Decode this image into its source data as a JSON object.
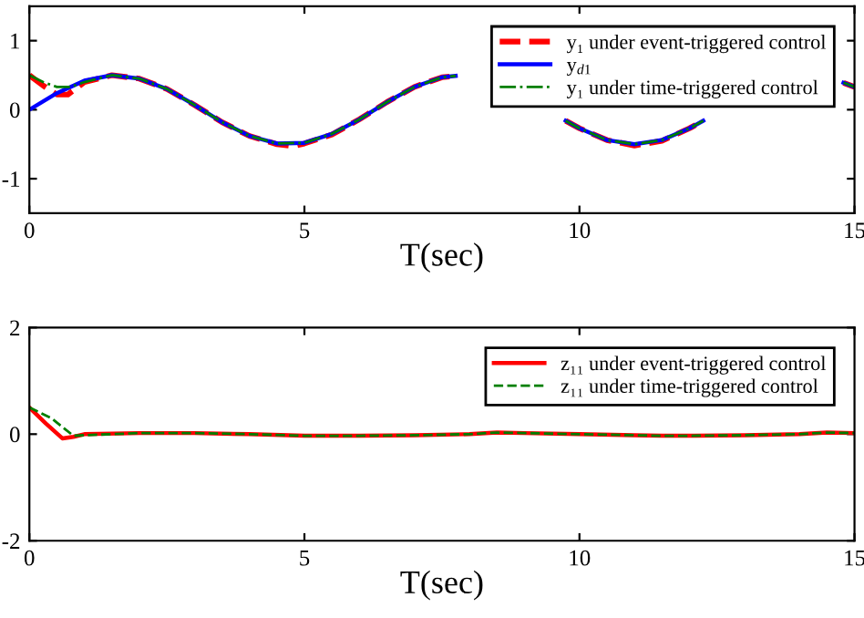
{
  "chart_data": [
    {
      "type": "line",
      "xlabel": "T(sec)",
      "xlim": [
        0,
        15
      ],
      "ylim": [
        -1.5,
        1.5
      ],
      "xticks": [
        0,
        5,
        10,
        15
      ],
      "yticks": [
        -1,
        0,
        1
      ],
      "grid": false,
      "legend": "top right",
      "series": [
        {
          "name": "y₁ under event-triggered control",
          "color": "#ff0000",
          "line_style": "dashed",
          "x": [
            0,
            0.25,
            0.5,
            0.7,
            1,
            1.5,
            2,
            2.5,
            3,
            3.5,
            4,
            4.5,
            4.8,
            5,
            5.5,
            6,
            6.5,
            7,
            7.5,
            7.75,
            8,
            8.5,
            9,
            9.5,
            9.75,
            10,
            10.5,
            11,
            11.5,
            12,
            12.25,
            12.5,
            13,
            13.5,
            14,
            14.5,
            14.8,
            15
          ],
          "values": [
            0.5,
            0.35,
            0.22,
            0.22,
            0.4,
            0.5,
            0.45,
            0.3,
            0.07,
            -0.18,
            -0.38,
            -0.5,
            -0.53,
            -0.49,
            -0.36,
            -0.14,
            0.11,
            0.33,
            0.47,
            0.49,
            null,
            null,
            null,
            null,
            -0.16,
            -0.27,
            -0.44,
            -0.52,
            -0.45,
            -0.27,
            -0.16,
            null,
            null,
            null,
            null,
            null,
            0.39,
            0.33
          ]
        },
        {
          "name": "y$_{d1}$",
          "color": "#0000ff",
          "line_style": "solid",
          "x": [
            0,
            0.5,
            1,
            1.5,
            2,
            2.5,
            3,
            3.5,
            4,
            4.5,
            5,
            5.5,
            6,
            6.5,
            7,
            7.5,
            7.75,
            8,
            8.5,
            9,
            9.5,
            9.75,
            10,
            10.5,
            11,
            11.5,
            12,
            12.25,
            12.5,
            13,
            13.5,
            14,
            14.5,
            14.8,
            15
          ],
          "values": [
            0,
            0.24,
            0.42,
            0.5,
            0.45,
            0.3,
            0.07,
            -0.18,
            -0.38,
            -0.49,
            -0.48,
            -0.35,
            -0.14,
            0.11,
            0.33,
            0.47,
            0.49,
            null,
            null,
            null,
            null,
            -0.16,
            -0.27,
            -0.44,
            -0.5,
            -0.44,
            -0.27,
            -0.16,
            null,
            null,
            null,
            null,
            null,
            0.39,
            0.33
          ]
        },
        {
          "name": "y₁ under time-triggered control",
          "color": "#007f00",
          "line_style": "dashdot",
          "x": [
            0,
            0.25,
            0.5,
            0.75,
            1,
            1.5,
            2,
            2.5,
            3,
            3.5,
            4,
            4.5,
            5,
            5.5,
            6,
            6.5,
            7,
            7.5,
            7.75,
            8,
            8.5,
            9,
            9.5,
            9.75,
            10,
            10.5,
            11,
            11.5,
            12,
            12.25,
            12.5,
            13,
            13.5,
            14,
            14.5,
            14.8,
            15
          ],
          "values": [
            0.5,
            0.4,
            0.33,
            0.33,
            0.4,
            0.5,
            0.45,
            0.3,
            0.07,
            -0.18,
            -0.38,
            -0.49,
            -0.48,
            -0.35,
            -0.14,
            0.11,
            0.33,
            0.47,
            0.49,
            null,
            null,
            null,
            null,
            -0.16,
            -0.27,
            -0.44,
            -0.5,
            -0.44,
            -0.27,
            -0.16,
            null,
            null,
            null,
            null,
            null,
            0.39,
            0.33
          ]
        }
      ]
    },
    {
      "type": "line",
      "xlabel": "T(sec)",
      "xlim": [
        0,
        15
      ],
      "ylim": [
        -2,
        2
      ],
      "xticks": [
        0,
        5,
        10,
        15
      ],
      "yticks": [
        -2,
        0,
        2
      ],
      "grid": false,
      "legend": "top right",
      "series": [
        {
          "name": "z₁₁ under event-triggered control",
          "color": "#ff0000",
          "line_style": "solid",
          "x": [
            0,
            0.3,
            0.6,
            0.8,
            1,
            2,
            3,
            4,
            5,
            6,
            7,
            8,
            8.5,
            9,
            10,
            11,
            11.5,
            12,
            13,
            14,
            14.5,
            15
          ],
          "values": [
            0.5,
            0.2,
            -0.08,
            -0.05,
            0,
            0.02,
            0.02,
            0,
            -0.03,
            -0.03,
            -0.02,
            0,
            0.03,
            0.02,
            0,
            -0.02,
            -0.03,
            -0.03,
            -0.02,
            0,
            0.03,
            0.02
          ]
        },
        {
          "name": "z₁₁ under time-triggered control",
          "color": "#007f00",
          "line_style": "dashed",
          "x": [
            0,
            0.4,
            0.8,
            1,
            2,
            3,
            4,
            5,
            6,
            7,
            8,
            8.5,
            9,
            10,
            11,
            11.5,
            12,
            13,
            14,
            14.5,
            15
          ],
          "values": [
            0.5,
            0.3,
            -0.03,
            -0.02,
            0.02,
            0.02,
            0,
            -0.03,
            -0.03,
            -0.02,
            0,
            0.03,
            0.02,
            0,
            -0.02,
            -0.03,
            -0.03,
            -0.02,
            0,
            0.03,
            0.02
          ]
        }
      ]
    }
  ]
}
